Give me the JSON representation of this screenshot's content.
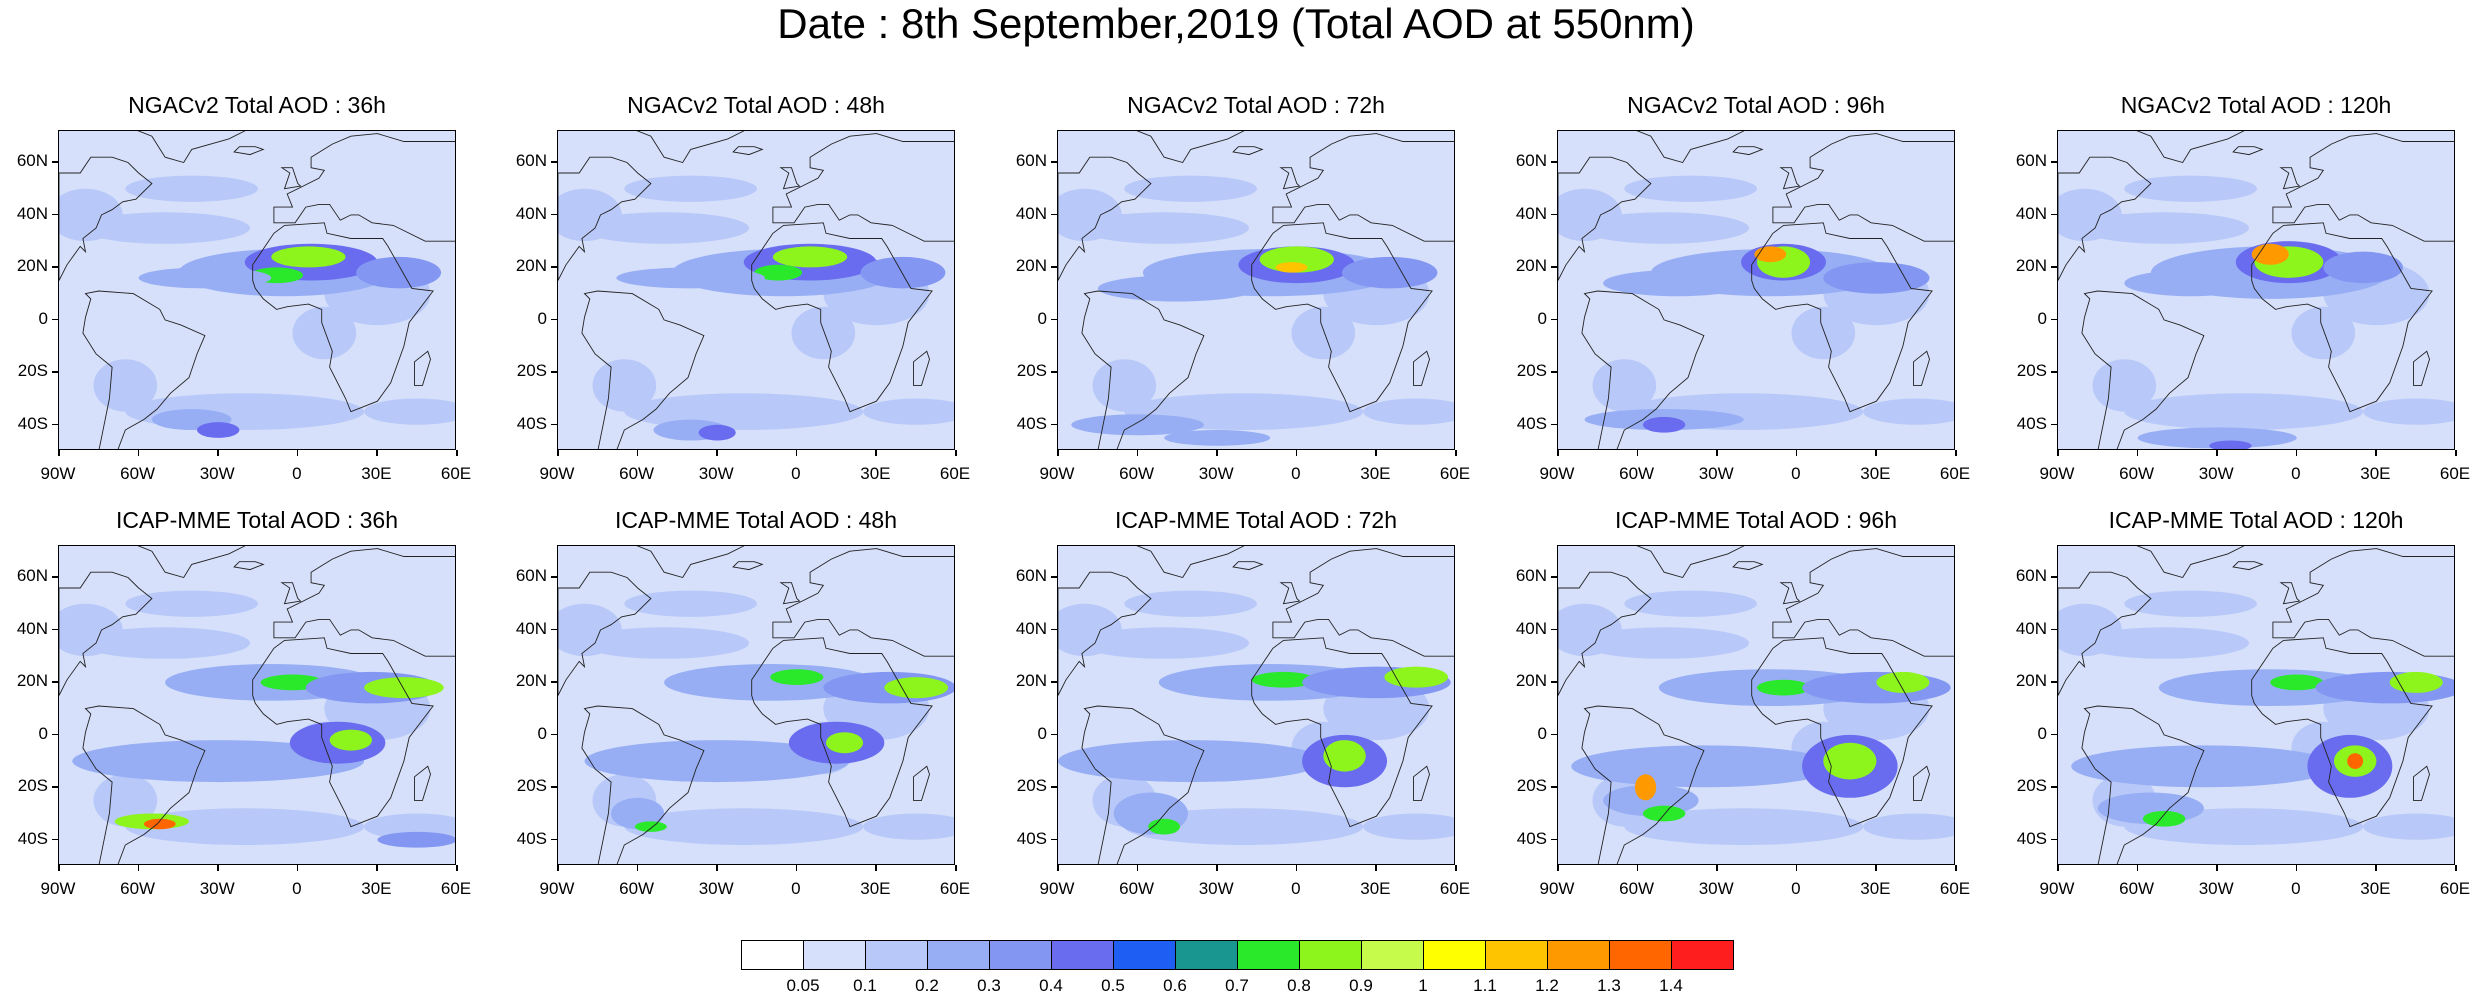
{
  "title": "Date : 8th September,2019 (Total AOD at 550nm)",
  "lat_labels": [
    "60N",
    "40N",
    "20N",
    "0",
    "20S",
    "40S"
  ],
  "lat_values": [
    60,
    40,
    20,
    0,
    -20,
    -40
  ],
  "lon_labels": [
    "90W",
    "60W",
    "30W",
    "0",
    "30E",
    "60E"
  ],
  "lon_values": [
    -90,
    -60,
    -30,
    0,
    30,
    60
  ],
  "map_extent": {
    "lon": [
      -90,
      60
    ],
    "lat": [
      -50,
      72
    ]
  },
  "panels": [
    {
      "title": "NGACv2 Total AOD : 36h",
      "model": "NGACv2",
      "lead": "36h"
    },
    {
      "title": "NGACv2 Total AOD : 48h",
      "model": "NGACv2",
      "lead": "48h"
    },
    {
      "title": "NGACv2 Total AOD : 72h",
      "model": "NGACv2",
      "lead": "72h"
    },
    {
      "title": "NGACv2 Total AOD : 96h",
      "model": "NGACv2",
      "lead": "96h"
    },
    {
      "title": "NGACv2 Total AOD : 120h",
      "model": "NGACv2",
      "lead": "120h"
    },
    {
      "title": "ICAP-MME Total AOD : 36h",
      "model": "ICAP-MME",
      "lead": "36h"
    },
    {
      "title": "ICAP-MME Total AOD : 48h",
      "model": "ICAP-MME",
      "lead": "48h"
    },
    {
      "title": "ICAP-MME Total AOD : 72h",
      "model": "ICAP-MME",
      "lead": "72h"
    },
    {
      "title": "ICAP-MME Total AOD : 96h",
      "model": "ICAP-MME",
      "lead": "96h"
    },
    {
      "title": "ICAP-MME Total AOD : 120h",
      "model": "ICAP-MME",
      "lead": "120h"
    }
  ],
  "colorbar": {
    "labels": [
      "0.05",
      "0.1",
      "0.2",
      "0.3",
      "0.4",
      "0.5",
      "0.6",
      "0.7",
      "0.8",
      "0.9",
      "1",
      "1.1",
      "1.2",
      "1.3",
      "1.4"
    ],
    "colors": [
      "#ffffff",
      "#d6e0fb",
      "#b8c8f8",
      "#97aef5",
      "#8296f2",
      "#6a6cef",
      "#1f5ef3",
      "#1a9690",
      "#2ae82a",
      "#8df51c",
      "#c6fb4c",
      "#ffff00",
      "#ffc400",
      "#ff9900",
      "#ff6600",
      "#ff1e1e"
    ]
  }
}
